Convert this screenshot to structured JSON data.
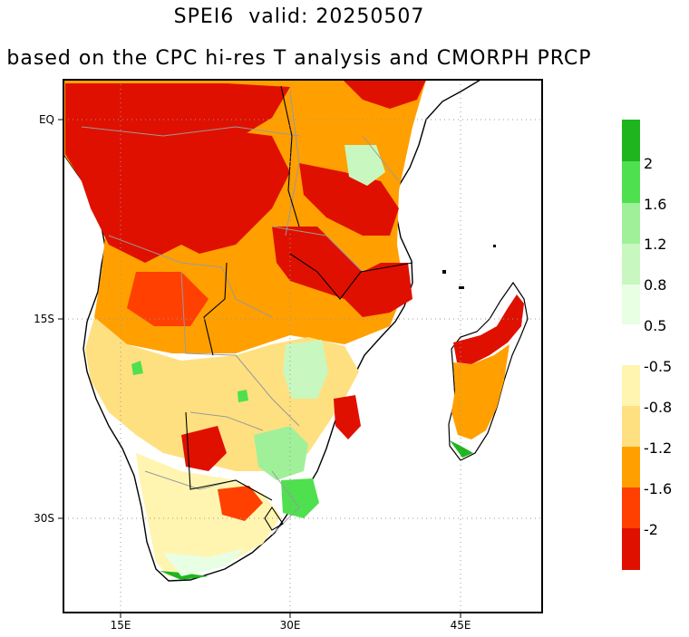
{
  "title": "SPEI6  valid: 20250507",
  "subtitle": "based on the CPC hi-res T analysis and CMORPH PRCP",
  "map": {
    "lat_labels": [
      "EQ",
      "15S",
      "30S"
    ],
    "lon_labels": [
      "15E",
      "30E",
      "45E"
    ]
  },
  "colorbar": {
    "wet": {
      "colors": [
        "#1fb51f",
        "#4fe04f",
        "#a0f09a",
        "#c8f8c0",
        "#e8ffe4"
      ],
      "labels": [
        "2",
        "1.6",
        "1.2",
        "0.8",
        "0.5"
      ]
    },
    "dry": {
      "colors": [
        "#fff5b0",
        "#ffe080",
        "#ffa000",
        "#ff4000",
        "#e01000"
      ],
      "labels": [
        "-0.5",
        "-0.8",
        "-1.2",
        "-1.6",
        "-2"
      ]
    }
  }
}
